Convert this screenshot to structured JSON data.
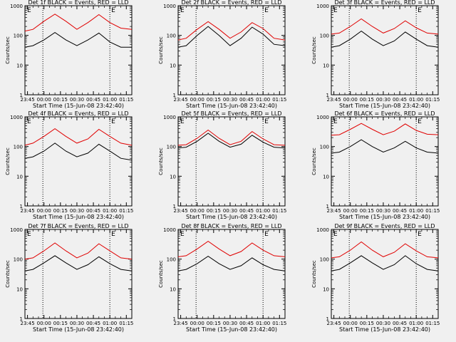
{
  "figure": {
    "xlabel": "Start Time (15-Jun-08 23:42:40)",
    "ylabel": "Counts/sec",
    "x_tick_labels": [
      "23:45",
      "00:00",
      "00:15",
      "00:30",
      "00:45",
      "01:00",
      "01:15"
    ],
    "y_tick_labels": [
      "1",
      "10",
      "100",
      "1000"
    ],
    "colors": {
      "events": "#000000",
      "lld": "#e00000",
      "background": "#f0f0f0"
    }
  },
  "chart_data": [
    {
      "type": "line",
      "title": "Det 1f BLACK = Events, RED = LLD",
      "marker_left": "E",
      "marker_right": "E",
      "x": [
        "23:42:40",
        "23:50",
        "00:00",
        "00:10",
        "00:20",
        "00:30",
        "00:40",
        "00:50",
        "01:00",
        "01:10",
        "01:20"
      ],
      "xlim": [
        "23:42:40",
        "01:20"
      ],
      "ylim": [
        1,
        1000
      ],
      "yscale": "log",
      "grid": false,
      "vlines": [
        "23:59",
        "01:00"
      ],
      "series": [
        {
          "name": "BLACK = Events",
          "color": "#000000",
          "values": [
            40,
            45,
            70,
            125,
            70,
            45,
            70,
            120,
            60,
            40,
            40
          ]
        },
        {
          "name": "RED = LLD",
          "color": "#e00000",
          "values": [
            140,
            160,
            300,
            520,
            300,
            160,
            270,
            500,
            270,
            175,
            160
          ]
        }
      ]
    },
    {
      "type": "line",
      "title": "Det 2f BLACK = Events, RED = LLD",
      "marker_left": "E",
      "marker_right": "E",
      "x": [
        "23:42:40",
        "23:50",
        "00:00",
        "00:10",
        "00:20",
        "00:30",
        "00:40",
        "00:50",
        "01:00",
        "01:10",
        "01:20"
      ],
      "xlim": [
        "23:42:40",
        "01:20"
      ],
      "ylim": [
        1,
        1000
      ],
      "yscale": "log",
      "grid": false,
      "vlines": [
        "23:59",
        "01:00"
      ],
      "series": [
        {
          "name": "BLACK = Events",
          "color": "#000000",
          "values": [
            40,
            45,
            100,
            200,
            100,
            45,
            80,
            190,
            110,
            50,
            45
          ]
        },
        {
          "name": "RED = LLD",
          "color": "#e00000",
          "values": [
            70,
            80,
            160,
            290,
            160,
            80,
            130,
            270,
            170,
            80,
            70
          ]
        }
      ]
    },
    {
      "type": "line",
      "title": "Det 3f BLACK = Events, RED = LLD",
      "marker_left": "E",
      "marker_right": "E",
      "x": [
        "23:42:40",
        "23:50",
        "00:00",
        "00:10",
        "00:20",
        "00:30",
        "00:40",
        "00:50",
        "01:00",
        "01:10",
        "01:20"
      ],
      "xlim": [
        "23:42:40",
        "01:20"
      ],
      "ylim": [
        1,
        1000
      ],
      "yscale": "log",
      "grid": false,
      "vlines": [
        "23:59",
        "01:00"
      ],
      "series": [
        {
          "name": "BLACK = Events",
          "color": "#000000",
          "values": [
            40,
            45,
            75,
            140,
            75,
            45,
            65,
            130,
            75,
            45,
            40
          ]
        },
        {
          "name": "RED = LLD",
          "color": "#e00000",
          "values": [
            110,
            120,
            200,
            360,
            200,
            120,
            170,
            310,
            180,
            120,
            110
          ]
        }
      ]
    },
    {
      "type": "line",
      "title": "Det 4f BLACK = Events, RED = LLD",
      "marker_left": "E",
      "marker_right": "E",
      "x": [
        "23:42:40",
        "23:50",
        "00:00",
        "00:10",
        "00:20",
        "00:30",
        "00:40",
        "00:50",
        "01:00",
        "01:10",
        "01:20"
      ],
      "xlim": [
        "23:42:40",
        "01:20"
      ],
      "ylim": [
        1,
        1000
      ],
      "yscale": "log",
      "grid": false,
      "vlines": [
        "23:59",
        "01:00"
      ],
      "series": [
        {
          "name": "BLACK = Events",
          "color": "#000000",
          "values": [
            40,
            45,
            70,
            130,
            70,
            45,
            60,
            120,
            70,
            40,
            35
          ]
        },
        {
          "name": "RED = LLD",
          "color": "#e00000",
          "values": [
            110,
            130,
            220,
            400,
            220,
            130,
            180,
            380,
            220,
            130,
            110
          ]
        }
      ]
    },
    {
      "type": "line",
      "title": "Det 5f BLACK = Events, RED = LLD",
      "marker_left": "E",
      "marker_right": "E",
      "x": [
        "23:42:40",
        "23:50",
        "00:00",
        "00:10",
        "00:20",
        "00:30",
        "00:40",
        "00:50",
        "01:00",
        "01:10",
        "01:20"
      ],
      "xlim": [
        "23:42:40",
        "01:20"
      ],
      "ylim": [
        1,
        1000
      ],
      "yscale": "log",
      "grid": false,
      "vlines": [
        "23:59",
        "01:00"
      ],
      "series": [
        {
          "name": "BLACK = Events",
          "color": "#000000",
          "values": [
            90,
            95,
            150,
            280,
            150,
            95,
            120,
            240,
            140,
            95,
            90
          ]
        },
        {
          "name": "RED = LLD",
          "color": "#e00000",
          "values": [
            110,
            115,
            190,
            360,
            190,
            115,
            150,
            320,
            180,
            115,
            110
          ]
        }
      ]
    },
    {
      "type": "line",
      "title": "Det 6f BLACK = Events, RED = LLD",
      "marker_left": "E",
      "marker_right": "E",
      "x": [
        "23:42:40",
        "23:50",
        "00:00",
        "00:10",
        "00:20",
        "00:30",
        "00:40",
        "00:50",
        "01:00",
        "01:10",
        "01:20"
      ],
      "xlim": [
        "23:42:40",
        "01:20"
      ],
      "ylim": [
        1,
        1000
      ],
      "yscale": "log",
      "grid": false,
      "vlines": [
        "23:59",
        "01:00"
      ],
      "series": [
        {
          "name": "BLACK = Events",
          "color": "#000000",
          "values": [
            60,
            65,
            100,
            170,
            100,
            65,
            90,
            150,
            90,
            65,
            60
          ]
        },
        {
          "name": "RED = LLD",
          "color": "#e00000",
          "values": [
            240,
            250,
            380,
            600,
            380,
            250,
            330,
            580,
            350,
            260,
            250
          ]
        }
      ]
    },
    {
      "type": "line",
      "title": "Det 7f BLACK = Events, RED = LLD",
      "marker_left": "E",
      "marker_right": "E",
      "x": [
        "23:42:40",
        "23:50",
        "00:00",
        "00:10",
        "00:20",
        "00:30",
        "00:40",
        "00:50",
        "01:00",
        "01:10",
        "01:20"
      ],
      "xlim": [
        "23:42:40",
        "01:20"
      ],
      "ylim": [
        1,
        1000
      ],
      "yscale": "log",
      "grid": false,
      "vlines": [
        "23:59",
        "01:00"
      ],
      "series": [
        {
          "name": "BLACK = Events",
          "color": "#000000",
          "values": [
            40,
            45,
            75,
            130,
            75,
            45,
            65,
            120,
            70,
            45,
            40
          ]
        },
        {
          "name": "RED = LLD",
          "color": "#e00000",
          "values": [
            100,
            110,
            190,
            350,
            190,
            110,
            160,
            330,
            190,
            110,
            100
          ]
        }
      ]
    },
    {
      "type": "line",
      "title": "Det 8f BLACK = Events, RED = LLD",
      "marker_left": "E",
      "marker_right": "E",
      "x": [
        "23:42:40",
        "23:50",
        "00:00",
        "00:10",
        "00:20",
        "00:30",
        "00:40",
        "00:50",
        "01:00",
        "01:10",
        "01:20"
      ],
      "xlim": [
        "23:42:40",
        "01:20"
      ],
      "ylim": [
        1,
        1000
      ],
      "yscale": "log",
      "grid": false,
      "vlines": [
        "23:59",
        "01:00"
      ],
      "series": [
        {
          "name": "BLACK = Events",
          "color": "#000000",
          "values": [
            40,
            45,
            70,
            125,
            70,
            45,
            60,
            110,
            65,
            45,
            40
          ]
        },
        {
          "name": "RED = LLD",
          "color": "#e00000",
          "values": [
            120,
            130,
            220,
            400,
            220,
            130,
            180,
            350,
            200,
            130,
            120
          ]
        }
      ]
    },
    {
      "type": "line",
      "title": "Det 9f BLACK = Events, RED = LLD",
      "marker_left": "E",
      "marker_right": "E",
      "x": [
        "23:42:40",
        "23:50",
        "00:00",
        "00:10",
        "00:20",
        "00:30",
        "00:40",
        "00:50",
        "01:00",
        "01:10",
        "01:20"
      ],
      "xlim": [
        "23:42:40",
        "01:20"
      ],
      "ylim": [
        1,
        1000
      ],
      "yscale": "log",
      "grid": false,
      "vlines": [
        "23:59",
        "01:00"
      ],
      "series": [
        {
          "name": "BLACK = Events",
          "color": "#000000",
          "values": [
            40,
            45,
            75,
            130,
            75,
            45,
            65,
            130,
            70,
            45,
            40
          ]
        },
        {
          "name": "RED = LLD",
          "color": "#e00000",
          "values": [
            110,
            120,
            200,
            380,
            200,
            120,
            170,
            330,
            190,
            120,
            110
          ]
        }
      ]
    }
  ]
}
